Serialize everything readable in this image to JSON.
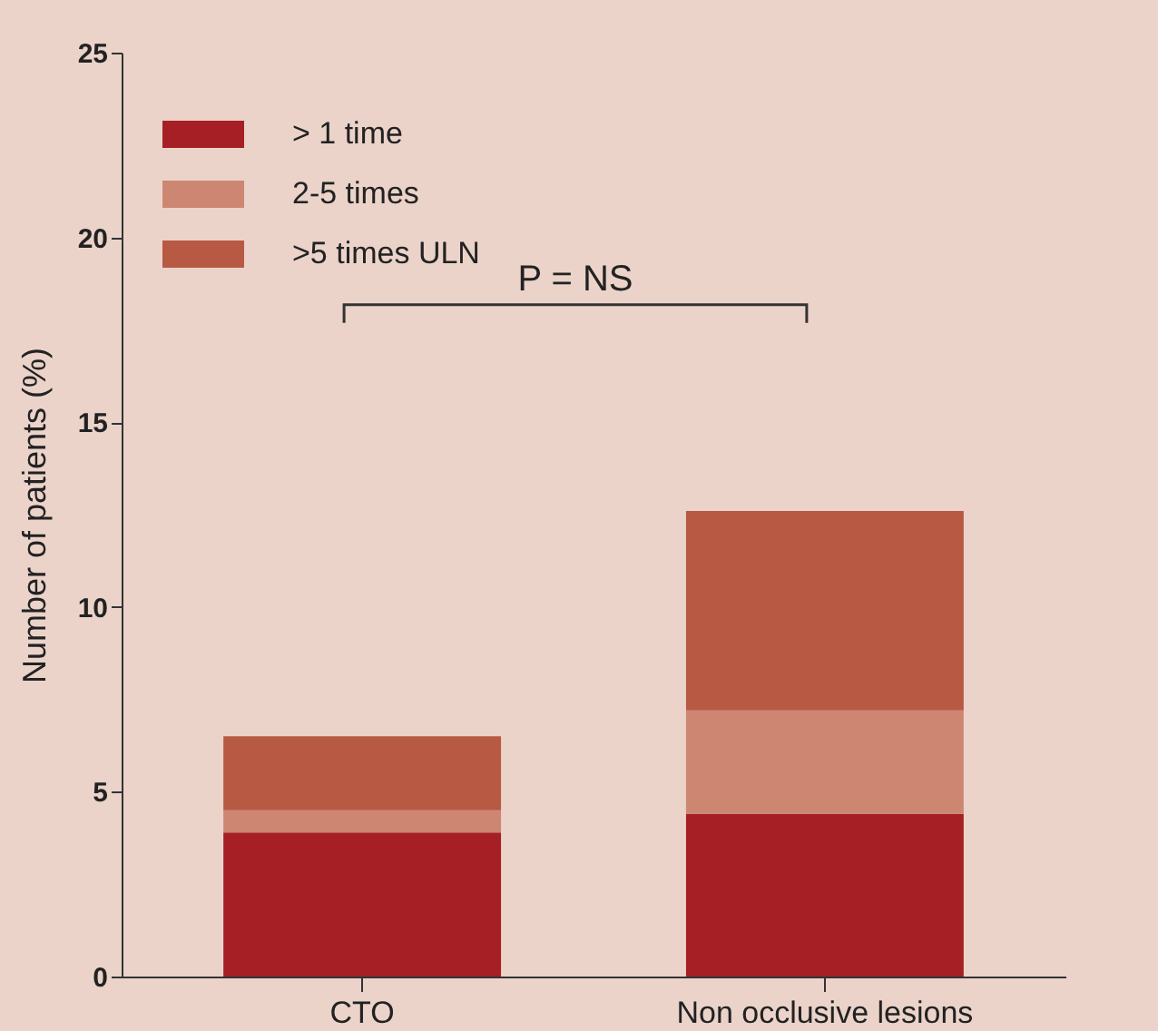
{
  "chart_data": {
    "type": "bar",
    "stacked": true,
    "ylabel": "Number of patients (%)",
    "categories": [
      "CTO",
      "Non occlusive lesions"
    ],
    "series": [
      {
        "name": "> 1 time",
        "color": "#a51f24",
        "values": [
          3.9,
          4.4
        ]
      },
      {
        "name": "2-5 times",
        "color": "#cd8672",
        "values": [
          0.6,
          2.8
        ]
      },
      {
        "name": ">5 times ULN",
        "color": "#b85944",
        "values": [
          2.0,
          5.4
        ]
      }
    ],
    "ylim": [
      0,
      25
    ],
    "yticks": [
      0,
      5,
      10,
      15,
      20,
      25
    ],
    "grid": false,
    "legend": "top left",
    "annotations": [
      "P = NS"
    ]
  }
}
